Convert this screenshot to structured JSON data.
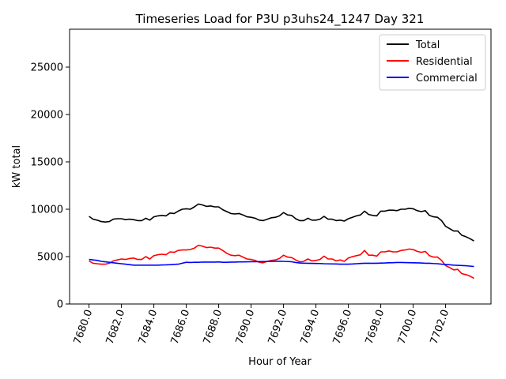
{
  "chart_data": {
    "type": "line",
    "title": "Timeseries Load for P3U p3uhs24_1247  Day 321",
    "xlabel": "Hour of Year",
    "ylabel": "kW total",
    "xlim": [
      7678.8,
      7704.8
    ],
    "ylim": [
      0,
      29000
    ],
    "x_start": 7680.0,
    "x_step": 0.25,
    "x_ticks": [
      7680,
      7682,
      7684,
      7686,
      7688,
      7690,
      7692,
      7694,
      7696,
      7698,
      7700,
      7702
    ],
    "x_tick_labels": [
      "7680.0",
      "7682.0",
      "7684.0",
      "7686.0",
      "7688.0",
      "7690.0",
      "7692.0",
      "7694.0",
      "7696.0",
      "7698.0",
      "7700.0",
      "7702.0"
    ],
    "y_ticks": [
      0,
      5000,
      10000,
      15000,
      20000,
      25000
    ],
    "y_tick_labels": [
      "0",
      "5000",
      "10000",
      "15000",
      "20000",
      "25000"
    ],
    "legend_position": "top-right",
    "series": [
      {
        "name": "Total",
        "color": "#000000",
        "values": [
          9250,
          8950,
          8850,
          8700,
          8650,
          8700,
          8950,
          9000,
          9000,
          8900,
          8950,
          8900,
          8800,
          8800,
          9050,
          8850,
          9200,
          9300,
          9350,
          9300,
          9600,
          9550,
          9800,
          10000,
          10050,
          10000,
          10250,
          10550,
          10450,
          10300,
          10350,
          10250,
          10250,
          9950,
          9750,
          9550,
          9500,
          9550,
          9400,
          9200,
          9150,
          9050,
          8850,
          8800,
          8950,
          9100,
          9150,
          9300,
          9650,
          9400,
          9350,
          9000,
          8800,
          8800,
          9050,
          8850,
          8850,
          8950,
          9250,
          8950,
          8950,
          8800,
          8850,
          8750,
          9000,
          9150,
          9300,
          9400,
          9800,
          9450,
          9350,
          9300,
          9800,
          9800,
          9900,
          9900,
          9850,
          10000,
          10000,
          10100,
          10050,
          9850,
          9750,
          9850,
          9350,
          9200,
          9150,
          8800,
          8200,
          7950,
          7700,
          7700,
          7250,
          7100,
          6900,
          6650
        ]
      },
      {
        "name": "Residential",
        "color": "#ff0000",
        "values": [
          4550,
          4300,
          4250,
          4200,
          4200,
          4300,
          4550,
          4650,
          4750,
          4700,
          4800,
          4850,
          4700,
          4700,
          5000,
          4750,
          5100,
          5200,
          5250,
          5200,
          5500,
          5450,
          5650,
          5700,
          5700,
          5750,
          5900,
          6200,
          6100,
          5950,
          6000,
          5900,
          5900,
          5650,
          5350,
          5150,
          5100,
          5150,
          4950,
          4750,
          4700,
          4600,
          4400,
          4350,
          4500,
          4600,
          4650,
          4800,
          5150,
          4950,
          4900,
          4650,
          4450,
          4500,
          4750,
          4550,
          4600,
          4700,
          5050,
          4750,
          4750,
          4550,
          4650,
          4500,
          4850,
          5000,
          5100,
          5200,
          5650,
          5150,
          5150,
          5050,
          5500,
          5500,
          5600,
          5500,
          5500,
          5650,
          5700,
          5800,
          5750,
          5550,
          5450,
          5550,
          5100,
          4950,
          4950,
          4600,
          4050,
          3850,
          3600,
          3650,
          3200,
          3100,
          2950,
          2700
        ]
      },
      {
        "name": "Commercial",
        "color": "#0000ff",
        "values": [
          4700,
          4650,
          4600,
          4500,
          4450,
          4400,
          4350,
          4300,
          4250,
          4200,
          4150,
          4100,
          4100,
          4100,
          4100,
          4100,
          4100,
          4100,
          4120,
          4130,
          4150,
          4180,
          4200,
          4300,
          4400,
          4380,
          4400,
          4400,
          4420,
          4420,
          4420,
          4420,
          4440,
          4400,
          4400,
          4420,
          4420,
          4440,
          4440,
          4450,
          4460,
          4460,
          4470,
          4480,
          4490,
          4500,
          4500,
          4510,
          4500,
          4480,
          4460,
          4380,
          4330,
          4310,
          4300,
          4290,
          4280,
          4270,
          4250,
          4240,
          4230,
          4220,
          4200,
          4200,
          4200,
          4220,
          4250,
          4280,
          4300,
          4300,
          4300,
          4300,
          4320,
          4330,
          4350,
          4360,
          4380,
          4380,
          4370,
          4360,
          4350,
          4340,
          4330,
          4300,
          4300,
          4270,
          4250,
          4200,
          4170,
          4140,
          4100,
          4080,
          4060,
          4040,
          4000,
          3950
        ]
      }
    ]
  }
}
